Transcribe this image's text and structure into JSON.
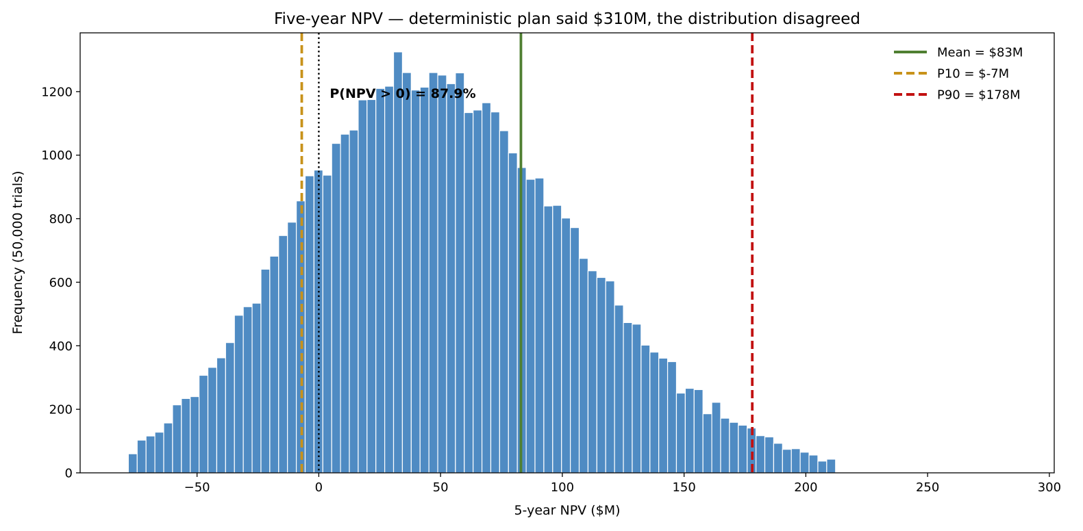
{
  "chart_data": {
    "type": "bar",
    "title": "Five-year NPV — deterministic plan said $310M, the distribution disagreed",
    "xlabel": "5-year NPV  ($M)",
    "ylabel": "Frequency  (50,000 trials)",
    "xlim": [
      -98,
      302
    ],
    "ylim": [
      0,
      1385
    ],
    "xticks": [
      -50,
      0,
      50,
      100,
      150,
      200,
      250,
      300
    ],
    "xtick_labels": [
      "−50",
      "0",
      "50",
      "100",
      "150",
      "200",
      "250",
      "300"
    ],
    "yticks": [
      0,
      200,
      400,
      600,
      800,
      1000,
      1200
    ],
    "ytick_labels": [
      "0",
      "200",
      "400",
      "600",
      "800",
      "1000",
      "1200"
    ],
    "grid": false,
    "bin_start": -78.2,
    "bin_width": 3.63,
    "values": [
      60,
      103,
      116,
      128,
      157,
      214,
      234,
      240,
      307,
      332,
      362,
      410,
      496,
      523,
      534,
      641,
      682,
      747,
      789,
      856,
      935,
      953,
      937,
      1037,
      1066,
      1079,
      1174,
      1175,
      1210,
      1217,
      1325,
      1260,
      1205,
      1214,
      1260,
      1252,
      1225,
      1259,
      1134,
      1142,
      1165,
      1136,
      1077,
      1007,
      961,
      924,
      928,
      840,
      842,
      802,
      772,
      675,
      636,
      615,
      604,
      528,
      473,
      468,
      402,
      380,
      361,
      350,
      251,
      266,
      262,
      186,
      222,
      172,
      159,
      150,
      141,
      117,
      113,
      93,
      74,
      76,
      65,
      56,
      37,
      43
    ],
    "bar_color": "#4f8bc3",
    "reference_lines": [
      {
        "name": "Mean = $83M",
        "x": 83,
        "color": "#4f7f32",
        "style": "solid",
        "in_legend": true
      },
      {
        "name": "P10 = $-7M",
        "x": -7,
        "color": "#c8921a",
        "style": "dashed",
        "in_legend": true
      },
      {
        "name": "P90 = $178M",
        "x": 178,
        "color": "#c21111",
        "style": "dashed",
        "in_legend": true
      },
      {
        "name": "zero",
        "x": 0,
        "color": "#000000",
        "style": "dotted",
        "in_legend": false
      }
    ],
    "annotation": {
      "text": "P(NPV > 0) = 87.9%",
      "x": 4.5,
      "y": 1195
    },
    "legend_position": "top-right"
  }
}
